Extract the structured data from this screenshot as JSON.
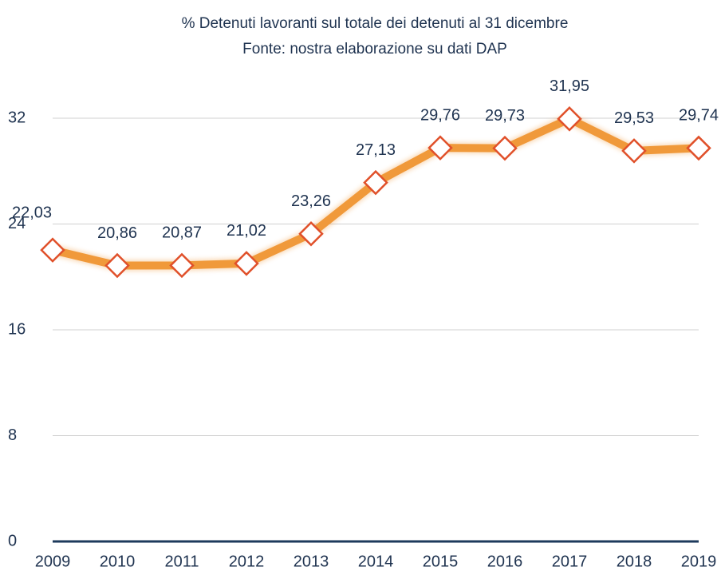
{
  "chart_data": {
    "type": "line",
    "title": "% Detenuti lavoranti sul totale dei detenuti al 31 dicembre",
    "subtitle": "Fonte: nostra elaborazione su dati DAP",
    "categories": [
      "2009",
      "2010",
      "2011",
      "2012",
      "2013",
      "2014",
      "2015",
      "2016",
      "2017",
      "2018",
      "2019"
    ],
    "series": [
      {
        "name": "% Detenuti lavoranti",
        "color": "#f0993a",
        "marker_color": "#e0502a",
        "values": [
          22.03,
          20.86,
          20.87,
          21.02,
          23.26,
          27.13,
          29.76,
          29.73,
          31.95,
          29.53,
          29.74
        ],
        "value_labels": [
          "22,03",
          "20,86",
          "20,87",
          "21,02",
          "23,26",
          "27,13",
          "29,76",
          "29,73",
          "31,95",
          "29,53",
          "29,74"
        ]
      }
    ],
    "ylim": [
      0,
      32
    ],
    "yticks": [
      0,
      8,
      16,
      24,
      32
    ],
    "grid": true
  }
}
